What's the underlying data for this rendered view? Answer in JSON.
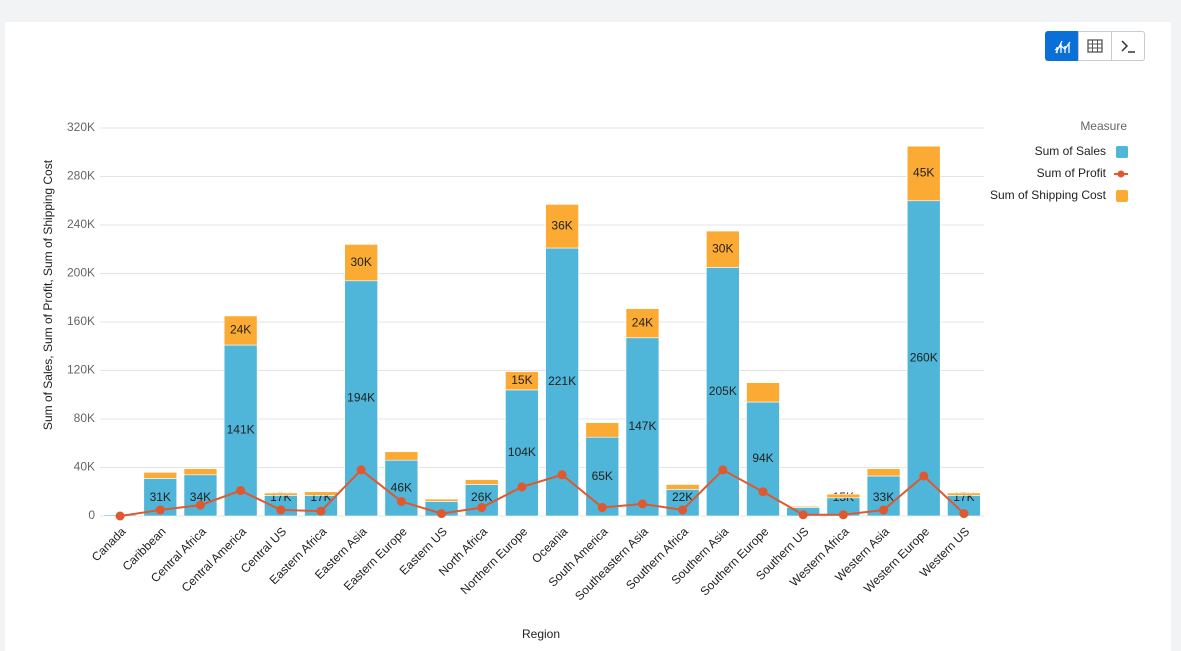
{
  "chart_data": {
    "type": "combo",
    "stacked": true,
    "x_label": "Region",
    "y_label": "Sum of Sales, Sum of Profit, Sum of Shipping Cost",
    "legend_title": "Measure",
    "legend_position": "top-right",
    "grid": true,
    "categories": [
      "Canada",
      "Caribbean",
      "Central Africa",
      "Central America",
      "Central US",
      "Eastern Africa",
      "Eastern Asia",
      "Eastern Europe",
      "Eastern US",
      "North Africa",
      "Northern Europe",
      "Oceania",
      "South America",
      "Southeastern Asia",
      "Southern Africa",
      "Southern Asia",
      "Southern Europe",
      "Southern US",
      "Western Africa",
      "Western Asia",
      "Western Europe",
      "Western US"
    ],
    "ylim": [
      0,
      320000
    ],
    "yticks": [
      {
        "value": 0,
        "label": "0"
      },
      {
        "value": 40000,
        "label": "40K"
      },
      {
        "value": 80000,
        "label": "80K"
      },
      {
        "value": 120000,
        "label": "120K"
      },
      {
        "value": 160000,
        "label": "160K"
      },
      {
        "value": 200000,
        "label": "200K"
      },
      {
        "value": 240000,
        "label": "240K"
      },
      {
        "value": 280000,
        "label": "280K"
      },
      {
        "value": 320000,
        "label": "320K"
      }
    ],
    "series": [
      {
        "name": "Sum of Sales",
        "type": "bar",
        "color": "#4fb5d9",
        "values": [
          1000,
          31000,
          34000,
          141000,
          17000,
          17000,
          194000,
          46000,
          12000,
          26000,
          104000,
          221000,
          65000,
          147000,
          22000,
          205000,
          94000,
          7000,
          15000,
          33000,
          260000,
          17000
        ],
        "value_labels": [
          null,
          "31K",
          "34K",
          "141K",
          "17K",
          "17K",
          "194K",
          "46K",
          null,
          "26K",
          "104K",
          "221K",
          "65K",
          "147K",
          "22K",
          "205K",
          "94K",
          null,
          "15K",
          "33K",
          "260K",
          "17K"
        ]
      },
      {
        "name": "Sum of Profit",
        "type": "line",
        "color": "#e0582d",
        "values": [
          0,
          5000,
          9000,
          21000,
          5000,
          4000,
          38000,
          12000,
          2000,
          7000,
          24000,
          34000,
          7000,
          10000,
          5000,
          38000,
          20000,
          1000,
          1000,
          5000,
          33000,
          2000
        ]
      },
      {
        "name": "Sum of Shipping Cost",
        "type": "bar",
        "color": "#fbab34",
        "values": [
          500,
          5000,
          5000,
          24000,
          2000,
          3000,
          30000,
          7000,
          2000,
          4000,
          15000,
          36000,
          12000,
          24000,
          4000,
          30000,
          16000,
          1000,
          3000,
          6000,
          45000,
          2000
        ],
        "value_labels": [
          null,
          null,
          null,
          "24K",
          null,
          null,
          "30K",
          null,
          null,
          null,
          "15K",
          "36K",
          null,
          "24K",
          null,
          "30K",
          null,
          null,
          null,
          null,
          "45K",
          null
        ]
      }
    ]
  }
}
